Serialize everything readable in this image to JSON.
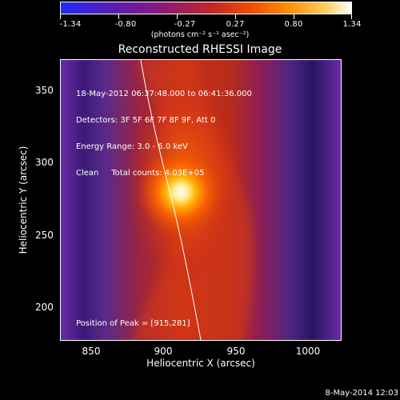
{
  "colorbar": {
    "tick_labels": [
      "-1.34",
      "-0.80",
      "-0.27",
      "0.27",
      "0.80",
      "1.34"
    ],
    "units": "(photons cm⁻² s⁻¹ asec⁻²)"
  },
  "title": "Reconstructed RHESSI Image",
  "info": {
    "line1": "18-May-2012 06:37:48.000 to 06:41:36.000",
    "line2": "Detectors: 3F 5F 6F 7F 8F 9F, Att 0",
    "line3": "Energy Range: 3.0 - 6.0 keV",
    "line4": "Clean     Total counts: 4.03E+05"
  },
  "peak_text": "Position of Peak = [915,281]",
  "axes": {
    "xlabel": "Heliocentric X (arcsec)",
    "ylabel": "Heliocentric Y (arcsec)",
    "xticks": [
      "850",
      "900",
      "950",
      "1000"
    ],
    "yticks": [
      "350",
      "300",
      "250",
      "200"
    ]
  },
  "timestamp": "8-May-2014 12:03"
}
